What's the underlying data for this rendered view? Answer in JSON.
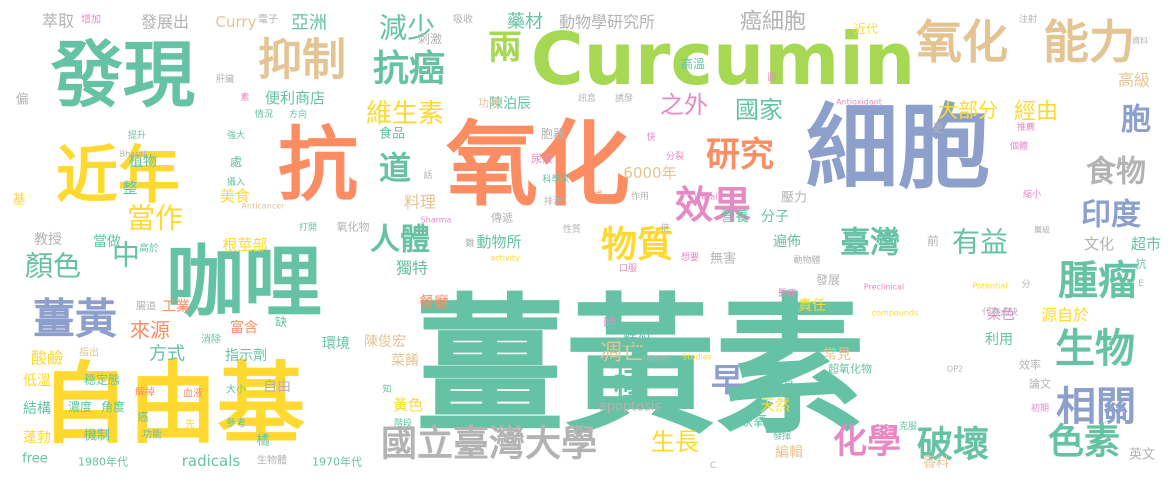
{
  "palette": {
    "teal": "#66c2a5",
    "orange": "#fc8d62",
    "blue": "#8da0cb",
    "pink": "#e78ac3",
    "green": "#a6d854",
    "yellow": "#ffd92f",
    "tan": "#e5c494",
    "gray": "#b3b3b3"
  },
  "words": [
    {
      "text": "薑黃素",
      "color": "teal",
      "weight": 10
    },
    {
      "text": "氧化",
      "color": "orange",
      "weight": 9
    },
    {
      "text": "細胞",
      "color": "blue",
      "weight": 9
    },
    {
      "text": "Curcumin",
      "color": "green",
      "weight": 8
    },
    {
      "text": "自由基",
      "color": "yellow",
      "weight": 8
    },
    {
      "text": "發現",
      "color": "teal",
      "weight": 8
    },
    {
      "text": "咖哩",
      "color": "teal",
      "weight": 8
    },
    {
      "text": "抗",
      "color": "orange",
      "weight": 8
    },
    {
      "text": "近年",
      "color": "yellow",
      "weight": 7
    },
    {
      "text": "氧化",
      "color": "tan",
      "weight": 6
    },
    {
      "text": "能力",
      "color": "tan",
      "weight": 6
    },
    {
      "text": "抑制",
      "color": "tan",
      "weight": 5
    },
    {
      "text": "減少",
      "color": "teal",
      "weight": 4
    },
    {
      "text": "抗癌",
      "color": "teal",
      "weight": 4
    },
    {
      "text": "研究",
      "color": "orange",
      "weight": 4
    },
    {
      "text": "效果",
      "color": "pink",
      "weight": 4
    },
    {
      "text": "薑黃",
      "color": "blue",
      "weight": 4
    },
    {
      "text": "腫瘤",
      "color": "teal",
      "weight": 4
    },
    {
      "text": "生物",
      "color": "teal",
      "weight": 4
    },
    {
      "text": "相關",
      "color": "blue",
      "weight": 4
    },
    {
      "text": "國立臺灣大學",
      "color": "gray",
      "weight": 4
    },
    {
      "text": "破壞",
      "color": "teal",
      "weight": 4
    },
    {
      "text": "色素",
      "color": "teal",
      "weight": 4
    },
    {
      "text": "化學",
      "color": "pink",
      "weight": 4
    },
    {
      "text": "物質",
      "color": "yellow",
      "weight": 4
    },
    {
      "text": "有益",
      "color": "teal",
      "weight": 3
    },
    {
      "text": "臺灣",
      "color": "teal",
      "weight": 3
    },
    {
      "text": "胞",
      "color": "blue",
      "weight": 4
    },
    {
      "text": "食物",
      "color": "gray",
      "weight": 3
    },
    {
      "text": "印度",
      "color": "blue",
      "weight": 3
    },
    {
      "text": "人體",
      "color": "teal",
      "weight": 3
    },
    {
      "text": "兩",
      "color": "green",
      "weight": 3
    },
    {
      "text": "道",
      "color": "teal",
      "weight": 3
    },
    {
      "text": "中",
      "color": "teal",
      "weight": 3
    },
    {
      "text": "當作",
      "color": "yellow",
      "weight": 3
    },
    {
      "text": "顏色",
      "color": "teal",
      "weight": 3
    },
    {
      "text": "早",
      "color": "blue",
      "weight": 3
    },
    {
      "text": "極",
      "color": "teal",
      "weight": 3
    },
    {
      "text": "癌細胞",
      "color": "gray",
      "weight": 2
    },
    {
      "text": "維生素",
      "color": "yellow",
      "weight": 2
    },
    {
      "text": "之外",
      "color": "pink",
      "weight": 2
    },
    {
      "text": "國家",
      "color": "teal",
      "weight": 2
    },
    {
      "text": "大部分",
      "color": "yellow",
      "weight": 2
    },
    {
      "text": "經由",
      "color": "yellow",
      "weight": 2
    },
    {
      "text": "凋亡",
      "color": "tan",
      "weight": 2
    },
    {
      "text": "生長",
      "color": "yellow",
      "weight": 2
    },
    {
      "text": "來源",
      "color": "orange",
      "weight": 2
    },
    {
      "text": "方式",
      "color": "teal",
      "weight": 2
    },
    {
      "text": "動物學研究所",
      "color": "gray",
      "weight": 1.5
    },
    {
      "text": "發展出",
      "color": "gray",
      "weight": 1.5
    },
    {
      "text": "萃取",
      "color": "gray",
      "weight": 1.5
    },
    {
      "text": "亞洲",
      "color": "teal",
      "weight": 1.5
    },
    {
      "text": "Curry",
      "color": "tan",
      "weight": 1.5
    },
    {
      "text": "藥材",
      "color": "teal",
      "weight": 1.5
    },
    {
      "text": "高級",
      "color": "tan",
      "weight": 1.5
    },
    {
      "text": "便利商店",
      "color": "teal",
      "weight": 1.2
    },
    {
      "text": "陳泊辰",
      "color": "teal",
      "weight": 1.2
    },
    {
      "text": "美食",
      "color": "yellow",
      "weight": 1.2
    },
    {
      "text": "根莖部",
      "color": "yellow",
      "weight": 1.2
    },
    {
      "text": "料理",
      "color": "tan",
      "weight": 1.2
    },
    {
      "text": "獨特",
      "color": "teal",
      "weight": 1.2
    },
    {
      "text": "工業",
      "color": "orange",
      "weight": 1.2
    },
    {
      "text": "富含",
      "color": "orange",
      "weight": 1.2
    },
    {
      "text": "指示劑",
      "color": "teal",
      "weight": 1.2
    },
    {
      "text": "酸鹼",
      "color": "yellow",
      "weight": 1.2
    },
    {
      "text": "環境",
      "color": "teal",
      "weight": 1.2
    },
    {
      "text": "陳俊宏",
      "color": "tan",
      "weight": 1.2
    },
    {
      "text": "菜餚",
      "color": "tan",
      "weight": 1.2
    },
    {
      "text": "黃色",
      "color": "yellow",
      "weight": 1.2
    },
    {
      "text": "餐廳",
      "color": "orange",
      "weight": 1.2
    },
    {
      "text": "類似",
      "color": "teal",
      "weight": 1.2
    },
    {
      "text": "營養",
      "color": "teal",
      "weight": 1.2
    },
    {
      "text": "分子",
      "color": "teal",
      "weight": 1.2
    },
    {
      "text": "遍佈",
      "color": "teal",
      "weight": 1.2
    },
    {
      "text": "責任",
      "color": "yellow",
      "weight": 1.2
    },
    {
      "text": "常見",
      "color": "tan",
      "weight": 1.2
    },
    {
      "text": "利用",
      "color": "teal",
      "weight": 1.2
    },
    {
      "text": "染色",
      "color": "pink",
      "weight": 1.2
    },
    {
      "text": "源自於",
      "color": "yellow",
      "weight": 1.2
    },
    {
      "text": "超市",
      "color": "teal",
      "weight": 1.2
    },
    {
      "text": "文化",
      "color": "gray",
      "weight": 1.2
    },
    {
      "text": "天然",
      "color": "yellow",
      "weight": 1.2
    },
    {
      "text": "缺氧",
      "color": "teal",
      "weight": 1.2
    },
    {
      "text": "編輯",
      "color": "tan",
      "weight": 1.2
    },
    {
      "text": "香料",
      "color": "tan",
      "weight": 1.2
    },
    {
      "text": "英文",
      "color": "gray",
      "weight": 1.2
    },
    {
      "text": "結構",
      "color": "teal",
      "weight": 1.2
    },
    {
      "text": "蓬勃",
      "color": "yellow",
      "weight": 1.2
    },
    {
      "text": "低溫",
      "color": "yellow",
      "weight": 1.2
    },
    {
      "text": "植物",
      "color": "teal",
      "weight": 1.2
    },
    {
      "text": "當做",
      "color": "teal",
      "weight": 1.2
    },
    {
      "text": "教授",
      "color": "gray",
      "weight": 1.2
    },
    {
      "text": "食品",
      "color": "teal",
      "weight": 1
    },
    {
      "text": "動物所",
      "color": "teal",
      "weight": 1.2
    },
    {
      "text": "6000年",
      "color": "tan",
      "weight": 1.2
    },
    {
      "text": "自由",
      "color": "gray",
      "weight": 1
    },
    {
      "text": "壓力",
      "color": "gray",
      "weight": 1
    },
    {
      "text": "radicals",
      "color": "teal",
      "weight": 1
    },
    {
      "text": "apoptosis",
      "color": "gray",
      "weight": 1
    },
    {
      "text": "1970年代",
      "color": "teal",
      "weight": 0.8
    },
    {
      "text": "1980年代",
      "color": "teal",
      "weight": 0.8
    },
    {
      "text": "free",
      "color": "teal",
      "weight": 1
    },
    {
      "text": "機制",
      "color": "teal",
      "weight": 1
    },
    {
      "text": "稳定態",
      "color": "teal",
      "weight": 0.9
    },
    {
      "text": "濃度",
      "color": "teal",
      "weight": 0.9
    },
    {
      "text": "角度",
      "color": "teal",
      "weight": 0.9
    },
    {
      "text": "解掉",
      "color": "orange",
      "weight": 0.7
    },
    {
      "text": "血液",
      "color": "orange",
      "weight": 0.7
    },
    {
      "text": "大小",
      "color": "teal",
      "weight": 0.7
    },
    {
      "text": "參考",
      "color": "teal",
      "weight": 0.7
    },
    {
      "text": "先",
      "color": "yellow",
      "weight": 0.7
    },
    {
      "text": "功能",
      "color": "teal",
      "weight": 0.7
    },
    {
      "text": "消除",
      "color": "teal",
      "weight": 0.7
    },
    {
      "text": "指出",
      "color": "tan",
      "weight": 0.7
    },
    {
      "text": "腸道",
      "color": "gray",
      "weight": 0.7
    },
    {
      "text": "高於",
      "color": "teal",
      "weight": 0.7
    },
    {
      "text": "生物體",
      "color": "gray",
      "weight": 0.7
    },
    {
      "text": "橘",
      "color": "teal",
      "weight": 1
    },
    {
      "text": "缺",
      "color": "teal",
      "weight": 1
    },
    {
      "text": "處",
      "color": "teal",
      "weight": 1
    },
    {
      "text": "整",
      "color": "teal",
      "weight": 1.2
    },
    {
      "text": "項",
      "color": "teal",
      "weight": 1.2
    },
    {
      "text": "時",
      "color": "pink",
      "weight": 1
    },
    {
      "text": "Anticancer",
      "color": "tan",
      "weight": 0.6
    },
    {
      "text": "Antioxidant",
      "color": "pink",
      "weight": 0.6
    },
    {
      "text": "Sharma",
      "color": "pink",
      "weight": 0.6
    },
    {
      "text": "Bharat",
      "color": "gray",
      "weight": 0.6
    },
    {
      "text": "Clinical",
      "color": "pink",
      "weight": 0.6
    },
    {
      "text": "Preclinical",
      "color": "pink",
      "weight": 0.6
    },
    {
      "text": "Potential",
      "color": "yellow",
      "weight": 0.6
    },
    {
      "text": "Studies",
      "color": "yellow",
      "weight": 0.6
    },
    {
      "text": "related",
      "color": "gray",
      "weight": 0.6
    },
    {
      "text": "compounds",
      "color": "yellow",
      "weight": 0.6
    },
    {
      "text": "activity",
      "color": "yellow",
      "weight": 0.6
    },
    {
      "text": "OP2",
      "color": "gray",
      "weight": 0.6
    },
    {
      "text": "高溫",
      "color": "teal",
      "weight": 0.8
    },
    {
      "text": "刺激",
      "color": "gray",
      "weight": 0.8
    },
    {
      "text": "吸收",
      "color": "gray",
      "weight": 0.7
    },
    {
      "text": "增加",
      "color": "pink",
      "weight": 0.7
    },
    {
      "text": "電子",
      "color": "gray",
      "weight": 0.7
    },
    {
      "text": "近代",
      "color": "yellow",
      "weight": 0.8
    },
    {
      "text": "注射",
      "color": "gray",
      "weight": 0.6
    },
    {
      "text": "訊息",
      "color": "gray",
      "weight": 0.6
    },
    {
      "text": "誘發",
      "color": "gray",
      "weight": 0.6
    },
    {
      "text": "功效",
      "color": "tan",
      "weight": 0.7
    },
    {
      "text": "胞器",
      "color": "gray",
      "weight": 0.8
    },
    {
      "text": "尿液",
      "color": "pink",
      "weight": 0.7
    },
    {
      "text": "分裂",
      "color": "pink",
      "weight": 0.6
    },
    {
      "text": "科學家",
      "color": "teal",
      "weight": 0.6
    },
    {
      "text": "排泄",
      "color": "gray",
      "weight": 0.6
    },
    {
      "text": "作用",
      "color": "gray",
      "weight": 0.6
    },
    {
      "text": "方向",
      "color": "teal",
      "weight": 0.6
    },
    {
      "text": "情況",
      "color": "teal",
      "weight": 0.6
    },
    {
      "text": "提升",
      "color": "teal",
      "weight": 0.6
    },
    {
      "text": "強大",
      "color": "teal",
      "weight": 0.6
    },
    {
      "text": "攝入",
      "color": "teal",
      "weight": 0.6
    },
    {
      "text": "打開",
      "color": "teal",
      "weight": 0.6
    },
    {
      "text": "氧化物",
      "color": "gray",
      "weight": 0.7
    },
    {
      "text": "傳遞",
      "color": "gray",
      "weight": 0.7
    },
    {
      "text": "性質",
      "color": "gray",
      "weight": 0.6
    },
    {
      "text": "倍",
      "color": "gray",
      "weight": 0.6
    },
    {
      "text": "推薦",
      "color": "pink",
      "weight": 0.6
    },
    {
      "text": "個體",
      "color": "pink",
      "weight": 0.6
    },
    {
      "text": "縮小",
      "color": "pink",
      "weight": 0.6
    },
    {
      "text": "資料",
      "color": "gray",
      "weight": 0.6
    },
    {
      "text": "層級",
      "color": "gray",
      "weight": 0.6
    },
    {
      "text": "無害",
      "color": "gray",
      "weight": 0.8
    },
    {
      "text": "口服",
      "color": "pink",
      "weight": 0.6
    },
    {
      "text": "想要",
      "color": "pink",
      "weight": 0.6
    },
    {
      "text": "動物體",
      "color": "gray",
      "weight": 0.6
    },
    {
      "text": "發展",
      "color": "gray",
      "weight": 0.8
    },
    {
      "text": "醫療",
      "color": "pink",
      "weight": 0.6
    },
    {
      "text": "中期",
      "color": "teal",
      "weight": 0.6
    },
    {
      "text": "代謝太快",
      "color": "gray",
      "weight": 0.6
    },
    {
      "text": "超氧化物",
      "color": "teal",
      "weight": 0.7
    },
    {
      "text": "效率",
      "color": "gray",
      "weight": 0.7
    },
    {
      "text": "論文",
      "color": "gray",
      "weight": 0.7
    },
    {
      "text": "初期",
      "color": "pink",
      "weight": 0.6
    },
    {
      "text": "克服",
      "color": "teal",
      "weight": 0.6
    },
    {
      "text": "發揮",
      "color": "teal",
      "weight": 0.6
    },
    {
      "text": "階段",
      "color": "teal",
      "weight": 0.6
    },
    {
      "text": "肝臟",
      "color": "gray",
      "weight": 0.6
    },
    {
      "text": "偏",
      "color": "gray",
      "weight": 0.8
    },
    {
      "text": "基",
      "color": "yellow",
      "weight": 0.8
    },
    {
      "text": "素",
      "color": "pink",
      "weight": 0.6
    },
    {
      "text": "圖",
      "color": "pink",
      "weight": 0.6
    },
    {
      "text": "成",
      "color": "orange",
      "weight": 0.6
    },
    {
      "text": "快",
      "color": "pink",
      "weight": 0.6
    },
    {
      "text": "話",
      "color": "gray",
      "weight": 0.6
    },
    {
      "text": "難",
      "color": "gray",
      "weight": 0.6
    },
    {
      "text": "知",
      "color": "teal",
      "weight": 0.6
    },
    {
      "text": "癌",
      "color": "teal",
      "weight": 0.7
    },
    {
      "text": "更",
      "color": "gray",
      "weight": 0.7
    },
    {
      "text": "前",
      "color": "gray",
      "weight": 0.8
    },
    {
      "text": "分",
      "color": "gray",
      "weight": 0.6
    },
    {
      "text": "抗",
      "color": "teal",
      "weight": 0.8
    },
    {
      "text": "E",
      "color": "gray",
      "weight": 0.6
    },
    {
      "text": "C",
      "color": "gray",
      "weight": 0.6
    }
  ]
}
